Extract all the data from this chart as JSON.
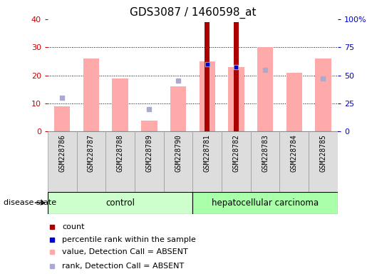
{
  "title": "GDS3087 / 1460598_at",
  "samples": [
    "GSM228786",
    "GSM228787",
    "GSM228788",
    "GSM228789",
    "GSM228790",
    "GSM228781",
    "GSM228782",
    "GSM228783",
    "GSM228784",
    "GSM228785"
  ],
  "groups": [
    "control",
    "control",
    "control",
    "control",
    "control",
    "hepatocellular carcinoma",
    "hepatocellular carcinoma",
    "hepatocellular carcinoma",
    "hepatocellular carcinoma",
    "hepatocellular carcinoma"
  ],
  "count_values": [
    null,
    null,
    null,
    null,
    null,
    39,
    39,
    null,
    null,
    null
  ],
  "pink_bar_values": [
    9,
    26,
    19,
    4,
    16,
    25,
    23,
    30,
    21,
    26
  ],
  "light_blue_sq": [
    12,
    null,
    null,
    8,
    18,
    24,
    23,
    22,
    null,
    19
  ],
  "dark_blue_sq": [
    null,
    null,
    null,
    null,
    null,
    24,
    23,
    null,
    null,
    null
  ],
  "left_ylim": [
    0,
    40
  ],
  "right_ylim": [
    0,
    100
  ],
  "left_yticks": [
    0,
    10,
    20,
    30,
    40
  ],
  "right_yticks": [
    0,
    25,
    50,
    75,
    100
  ],
  "right_yticklabels": [
    "0",
    "25",
    "50",
    "75",
    "100%"
  ],
  "left_ycolor": "#cc0000",
  "right_ycolor": "#0000cc",
  "title_fontsize": 11,
  "count_color": "#aa0000",
  "pink_color": "#ffaaaa",
  "light_blue_color": "#aaaacc",
  "dark_blue_color": "#0000cc",
  "control_bg": "#ccffcc",
  "cancer_bg": "#aaffaa",
  "group_label_control": "control",
  "group_label_cancer": "hepatocellular carcinoma",
  "legend_items": [
    {
      "label": "count",
      "color": "#aa0000"
    },
    {
      "label": "percentile rank within the sample",
      "color": "#0000cc"
    },
    {
      "label": "value, Detection Call = ABSENT",
      "color": "#ffaaaa"
    },
    {
      "label": "rank, Detection Call = ABSENT",
      "color": "#aaaacc"
    }
  ]
}
